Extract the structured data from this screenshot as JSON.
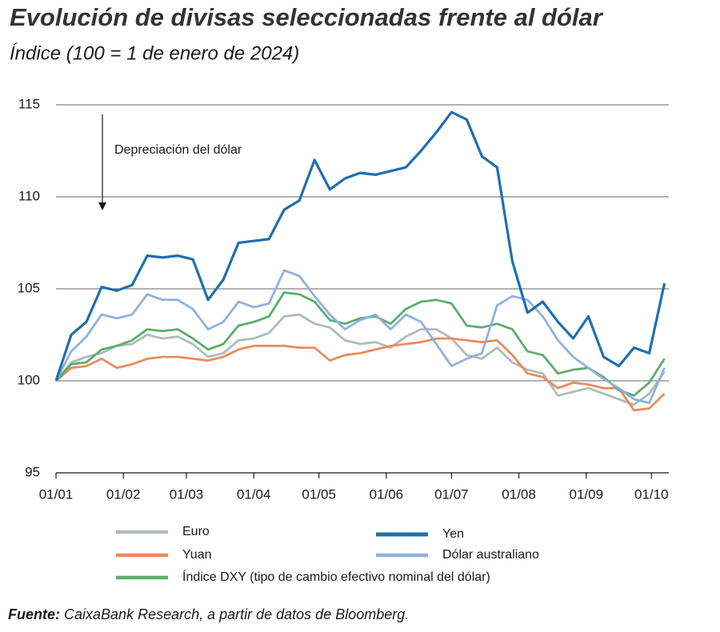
{
  "chart_data": {
    "type": "line",
    "title": "Evolución de divisas seleccionadas frente al dólar",
    "subtitle": "Índice (100 = 1 de enero de 2024)",
    "annotation": "Depreciación del dólar",
    "source_label": "Fuente:",
    "source": "CaixaBank Research, a partir de datos de Bloomberg.",
    "x": [
      0,
      7,
      14,
      21,
      28,
      35,
      42,
      49,
      56,
      63,
      70,
      77,
      84,
      91,
      98,
      105,
      112,
      119,
      126,
      133,
      140,
      147,
      154,
      161,
      168,
      175,
      182,
      189,
      196,
      203,
      210,
      217,
      224,
      231,
      238,
      245,
      252,
      259,
      266,
      273,
      280
    ],
    "xlim": [
      0,
      282
    ],
    "xticks": [
      {
        "value": 0,
        "label": "01/01"
      },
      {
        "value": 31,
        "label": "01/02"
      },
      {
        "value": 60,
        "label": "01/03"
      },
      {
        "value": 91,
        "label": "01/04"
      },
      {
        "value": 121,
        "label": "01/05"
      },
      {
        "value": 152,
        "label": "01/06"
      },
      {
        "value": 182,
        "label": "01/07"
      },
      {
        "value": 213,
        "label": "01/08"
      },
      {
        "value": 244,
        "label": "01/09"
      },
      {
        "value": 274,
        "label": "01/10"
      }
    ],
    "ylim": [
      95,
      115
    ],
    "yticks": [
      95,
      100,
      105,
      110,
      115
    ],
    "grid": true,
    "series": [
      {
        "name": "Euro",
        "color": "#aebcb9",
        "values": [
          100,
          101.0,
          101.3,
          101.5,
          101.9,
          102.0,
          102.5,
          102.3,
          102.4,
          102.0,
          101.3,
          101.5,
          102.2,
          102.3,
          102.6,
          103.5,
          103.6,
          103.1,
          102.9,
          102.2,
          102.0,
          102.1,
          101.8,
          102.4,
          102.8,
          102.8,
          102.3,
          101.4,
          101.2,
          101.8,
          101.0,
          100.6,
          100.4,
          99.2,
          99.4,
          99.6,
          99.3,
          99.0,
          98.7,
          99.3,
          100.5
        ]
      },
      {
        "name": "Yen",
        "color": "#1f6fae",
        "values": [
          100,
          102.5,
          103.2,
          105.1,
          104.9,
          105.2,
          106.8,
          106.7,
          106.8,
          106.6,
          104.4,
          105.5,
          107.5,
          107.6,
          107.7,
          109.3,
          109.8,
          112.0,
          110.4,
          111.0,
          111.3,
          111.2,
          111.4,
          111.6,
          112.5,
          113.5,
          114.6,
          114.2,
          112.2,
          111.6,
          106.5,
          103.7,
          104.3,
          103.2,
          102.3,
          103.5,
          101.3,
          100.8,
          101.8,
          101.5,
          105.3
        ]
      },
      {
        "name": "Yuan",
        "color": "#e98b5c",
        "values": [
          100,
          100.7,
          100.8,
          101.2,
          100.7,
          100.9,
          101.2,
          101.3,
          101.3,
          101.2,
          101.1,
          101.3,
          101.7,
          101.9,
          101.9,
          101.9,
          101.8,
          101.8,
          101.1,
          101.4,
          101.5,
          101.7,
          101.9,
          102.0,
          102.1,
          102.3,
          102.3,
          102.2,
          102.1,
          102.2,
          101.4,
          100.4,
          100.2,
          99.6,
          99.9,
          99.8,
          99.6,
          99.6,
          98.4,
          98.5,
          99.3
        ]
      },
      {
        "name": "Dólar australiano",
        "color": "#8fb1e0",
        "values": [
          100,
          101.6,
          102.4,
          103.6,
          103.4,
          103.6,
          104.7,
          104.4,
          104.4,
          103.9,
          102.8,
          103.2,
          104.3,
          104.0,
          104.2,
          106.0,
          105.7,
          104.6,
          103.6,
          102.8,
          103.3,
          103.6,
          102.8,
          103.6,
          103.2,
          102.0,
          100.8,
          101.2,
          101.5,
          104.1,
          104.6,
          104.4,
          103.5,
          102.2,
          101.3,
          100.7,
          100.1,
          99.6,
          99.0,
          98.8,
          100.7
        ]
      },
      {
        "name": "Índice DXY (tipo de cambio efectivo nominal del dólar)",
        "color": "#5bae6b",
        "values": [
          100,
          100.9,
          101.0,
          101.7,
          101.9,
          102.2,
          102.8,
          102.7,
          102.8,
          102.3,
          101.7,
          102.0,
          103.0,
          103.2,
          103.5,
          104.8,
          104.7,
          104.3,
          103.3,
          103.1,
          103.4,
          103.5,
          103.1,
          103.9,
          104.3,
          104.4,
          104.2,
          103.0,
          102.9,
          103.1,
          102.8,
          101.6,
          101.4,
          100.4,
          100.6,
          100.7,
          100.2,
          99.5,
          99.2,
          99.9,
          101.2
        ]
      }
    ]
  }
}
